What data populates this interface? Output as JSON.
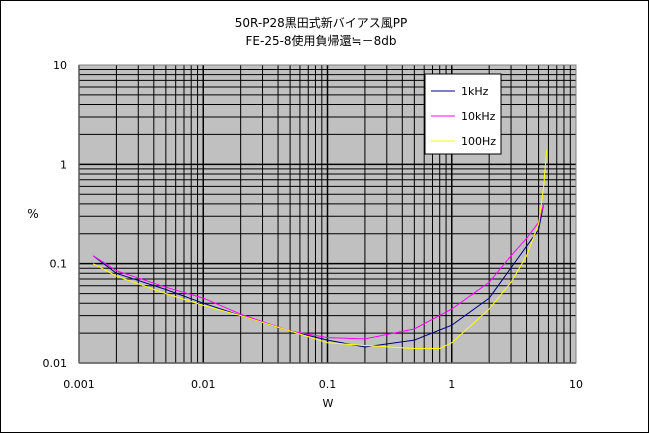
{
  "chart_data": {
    "type": "line",
    "title_lines": [
      "50R-P28黒田式新バイアス風PP",
      "FE-25-8使用負帰還≒－8db"
    ],
    "xlabel": "W",
    "ylabel": "%",
    "x_scale": "log",
    "y_scale": "log",
    "xlim": [
      0.001,
      10
    ],
    "ylim": [
      0.01,
      10
    ],
    "x_ticks": [
      "0.001",
      "0.01",
      "0.1",
      "1",
      "10"
    ],
    "y_ticks": [
      "0.01",
      "0.1",
      "1",
      "10"
    ],
    "grid": true,
    "legend_position": "top-right",
    "series": [
      {
        "name": "1kHz",
        "color": "#000080",
        "points": [
          [
            0.0013,
            0.12
          ],
          [
            0.002,
            0.08
          ],
          [
            0.005,
            0.055
          ],
          [
            0.01,
            0.04
          ],
          [
            0.02,
            0.03
          ],
          [
            0.05,
            0.021
          ],
          [
            0.1,
            0.017
          ],
          [
            0.2,
            0.0145
          ],
          [
            0.5,
            0.017
          ],
          [
            1.0,
            0.024
          ],
          [
            2.0,
            0.045
          ],
          [
            4.0,
            0.15
          ],
          [
            5.0,
            0.22
          ],
          [
            5.5,
            0.4
          ]
        ]
      },
      {
        "name": "10kHz",
        "color": "#ff00ff",
        "points": [
          [
            0.0013,
            0.12
          ],
          [
            0.002,
            0.085
          ],
          [
            0.005,
            0.058
          ],
          [
            0.01,
            0.045
          ],
          [
            0.02,
            0.031
          ],
          [
            0.05,
            0.021
          ],
          [
            0.1,
            0.018
          ],
          [
            0.2,
            0.0175
          ],
          [
            0.5,
            0.022
          ],
          [
            1.0,
            0.035
          ],
          [
            2.0,
            0.065
          ],
          [
            3.0,
            0.12
          ],
          [
            4.0,
            0.18
          ],
          [
            5.0,
            0.26
          ],
          [
            5.5,
            0.4
          ]
        ]
      },
      {
        "name": "100Hz",
        "color": "#ffff00",
        "points": [
          [
            0.0013,
            0.1
          ],
          [
            0.002,
            0.075
          ],
          [
            0.005,
            0.05
          ],
          [
            0.01,
            0.038
          ],
          [
            0.02,
            0.03
          ],
          [
            0.05,
            0.021
          ],
          [
            0.1,
            0.016
          ],
          [
            0.2,
            0.015
          ],
          [
            0.5,
            0.014
          ],
          [
            0.8,
            0.014
          ],
          [
            1.0,
            0.016
          ],
          [
            2.0,
            0.035
          ],
          [
            3.0,
            0.065
          ],
          [
            4.0,
            0.12
          ],
          [
            5.0,
            0.25
          ],
          [
            5.5,
            0.6
          ],
          [
            5.8,
            1.4
          ]
        ]
      }
    ]
  }
}
